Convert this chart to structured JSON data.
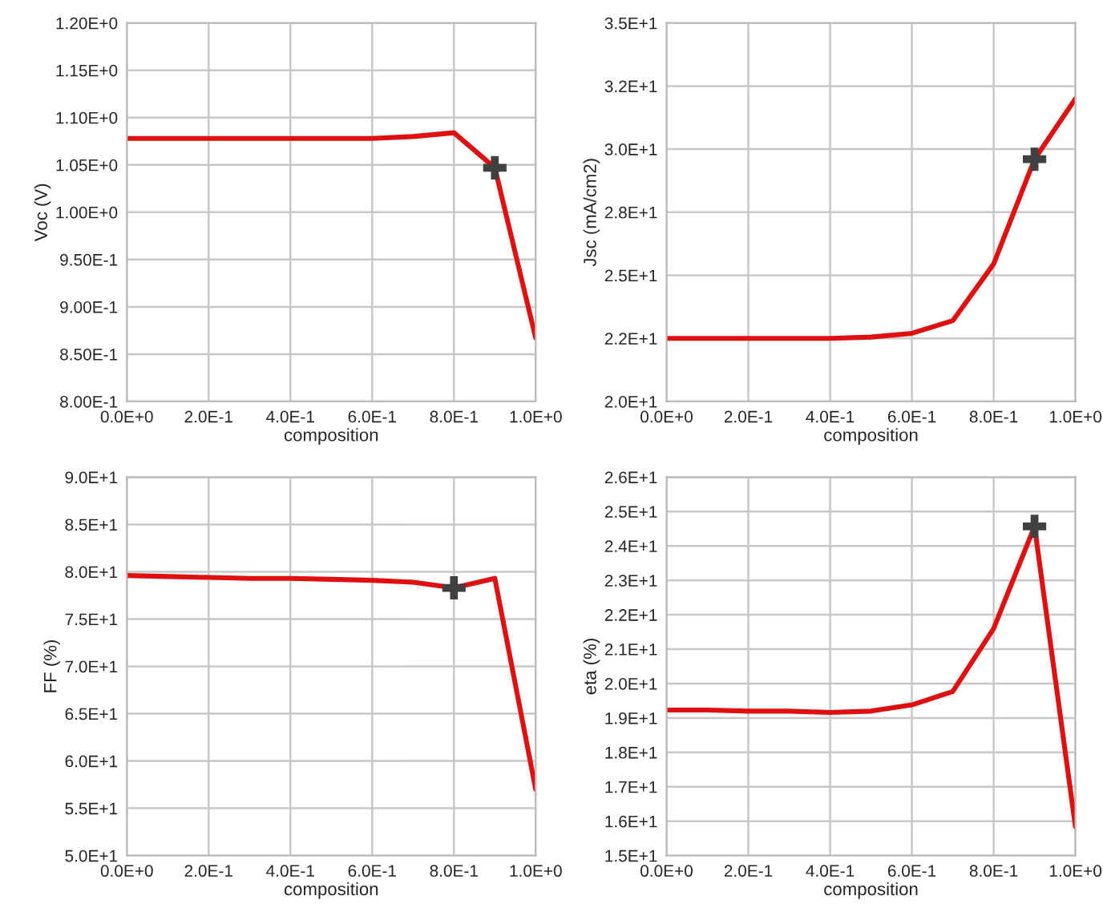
{
  "chart_data": [
    {
      "type": "line",
      "xlabel": "composition",
      "ylabel": "Voc (V)",
      "grid": true,
      "x": [
        0,
        0.1,
        0.2,
        0.3,
        0.4,
        0.5,
        0.6,
        0.7,
        0.8,
        0.9,
        1.0
      ],
      "xlim": [
        0,
        1.0
      ],
      "xticks": [
        {
          "value": 0,
          "label": "0.0E+0"
        },
        {
          "value": 0.2,
          "label": "2.0E-1"
        },
        {
          "value": 0.4,
          "label": "4.0E-1"
        },
        {
          "value": 0.6,
          "label": "6.0E-1"
        },
        {
          "value": 0.8,
          "label": "8.0E-1"
        },
        {
          "value": 1.0,
          "label": "1.0E+0"
        }
      ],
      "ylim": [
        0.8,
        1.2
      ],
      "yticks": [
        {
          "value": 0.8,
          "label": "8.00E-1"
        },
        {
          "value": 0.85,
          "label": "8.50E-1"
        },
        {
          "value": 0.9,
          "label": "9.00E-1"
        },
        {
          "value": 0.95,
          "label": "9.50E-1"
        },
        {
          "value": 1.0,
          "label": "1.00E+0"
        },
        {
          "value": 1.05,
          "label": "1.05E+0"
        },
        {
          "value": 1.1,
          "label": "1.10E+0"
        },
        {
          "value": 1.15,
          "label": "1.15E+0"
        },
        {
          "value": 1.2,
          "label": "1.20E+0"
        }
      ],
      "series": [
        {
          "color": "#e01010",
          "marker": "none",
          "values": [
            1.078,
            1.078,
            1.078,
            1.078,
            1.078,
            1.078,
            1.078,
            1.08,
            1.084,
            1.047,
            0.867
          ]
        },
        {
          "type": "scatter",
          "color": "#404040",
          "marker": "cross",
          "values": [
            null,
            null,
            null,
            null,
            null,
            null,
            null,
            null,
            null,
            1.047,
            null
          ]
        }
      ]
    },
    {
      "type": "line",
      "xlabel": "composition",
      "ylabel": "Jsc (mA/cm2)",
      "grid": true,
      "x": [
        0,
        0.1,
        0.2,
        0.3,
        0.4,
        0.5,
        0.6,
        0.7,
        0.8,
        0.9,
        1.0
      ],
      "xlim": [
        0,
        1.0
      ],
      "xticks": [
        {
          "value": 0,
          "label": "0.0E+0"
        },
        {
          "value": 0.2,
          "label": "2.0E-1"
        },
        {
          "value": 0.4,
          "label": "4.0E-1"
        },
        {
          "value": 0.6,
          "label": "6.0E-1"
        },
        {
          "value": 0.8,
          "label": "8.0E-1"
        },
        {
          "value": 1.0,
          "label": "1.0E+0"
        }
      ],
      "ylim": [
        20,
        35
      ],
      "yticks": [
        {
          "value": 20,
          "label": "2.0E+1"
        },
        {
          "value": 22.5,
          "label": "2.2E+1"
        },
        {
          "value": 25,
          "label": "2.5E+1"
        },
        {
          "value": 27.5,
          "label": "2.8E+1"
        },
        {
          "value": 30,
          "label": "3.0E+1"
        },
        {
          "value": 32.5,
          "label": "3.2E+1"
        },
        {
          "value": 35,
          "label": "3.5E+1"
        }
      ],
      "series": [
        {
          "color": "#e01010",
          "marker": "none",
          "values": [
            22.5,
            22.5,
            22.5,
            22.5,
            22.5,
            22.55,
            22.7,
            23.2,
            25.45,
            29.6,
            32.0
          ]
        },
        {
          "type": "scatter",
          "color": "#404040",
          "marker": "cross",
          "values": [
            null,
            null,
            null,
            null,
            null,
            null,
            null,
            null,
            null,
            29.6,
            null
          ]
        }
      ]
    },
    {
      "type": "line",
      "xlabel": "composition",
      "ylabel": "FF (%)",
      "grid": true,
      "x": [
        0,
        0.1,
        0.2,
        0.3,
        0.4,
        0.5,
        0.6,
        0.7,
        0.8,
        0.9,
        1.0
      ],
      "xlim": [
        0,
        1.0
      ],
      "xticks": [
        {
          "value": 0,
          "label": "0.0E+0"
        },
        {
          "value": 0.2,
          "label": "2.0E-1"
        },
        {
          "value": 0.4,
          "label": "4.0E-1"
        },
        {
          "value": 0.6,
          "label": "6.0E-1"
        },
        {
          "value": 0.8,
          "label": "8.0E-1"
        },
        {
          "value": 1.0,
          "label": "1.0E+0"
        }
      ],
      "ylim": [
        50,
        90
      ],
      "yticks": [
        {
          "value": 50,
          "label": "5.0E+1"
        },
        {
          "value": 55,
          "label": "5.5E+1"
        },
        {
          "value": 60,
          "label": "6.0E+1"
        },
        {
          "value": 65,
          "label": "6.5E+1"
        },
        {
          "value": 70,
          "label": "7.0E+1"
        },
        {
          "value": 75,
          "label": "7.5E+1"
        },
        {
          "value": 80,
          "label": "8.0E+1"
        },
        {
          "value": 85,
          "label": "8.5E+1"
        },
        {
          "value": 90,
          "label": "9.0E+1"
        }
      ],
      "series": [
        {
          "color": "#e01010",
          "marker": "none",
          "values": [
            79.6,
            79.5,
            79.4,
            79.3,
            79.3,
            79.2,
            79.1,
            78.9,
            78.3,
            79.3,
            57.0
          ]
        },
        {
          "type": "scatter",
          "color": "#404040",
          "marker": "cross",
          "values": [
            null,
            null,
            null,
            null,
            null,
            null,
            null,
            null,
            78.3,
            null,
            null
          ]
        }
      ]
    },
    {
      "type": "line",
      "xlabel": "composition",
      "ylabel": "eta (%)",
      "grid": true,
      "x": [
        0,
        0.1,
        0.2,
        0.3,
        0.4,
        0.5,
        0.6,
        0.7,
        0.8,
        0.9,
        1.0
      ],
      "xlim": [
        0,
        1.0
      ],
      "xticks": [
        {
          "value": 0,
          "label": "0.0E+0"
        },
        {
          "value": 0.2,
          "label": "2.0E-1"
        },
        {
          "value": 0.4,
          "label": "4.0E-1"
        },
        {
          "value": 0.6,
          "label": "6.0E-1"
        },
        {
          "value": 0.8,
          "label": "8.0E-1"
        },
        {
          "value": 1.0,
          "label": "1.0E+0"
        }
      ],
      "ylim": [
        15,
        26
      ],
      "yticks": [
        {
          "value": 15,
          "label": "1.5E+1"
        },
        {
          "value": 16,
          "label": "1.6E+1"
        },
        {
          "value": 17,
          "label": "1.7E+1"
        },
        {
          "value": 18,
          "label": "1.8E+1"
        },
        {
          "value": 19,
          "label": "1.9E+1"
        },
        {
          "value": 20,
          "label": "2.0E+1"
        },
        {
          "value": 21,
          "label": "2.1E+1"
        },
        {
          "value": 22,
          "label": "2.2E+1"
        },
        {
          "value": 23,
          "label": "2.3E+1"
        },
        {
          "value": 24,
          "label": "2.4E+1"
        },
        {
          "value": 25,
          "label": "2.5E+1"
        },
        {
          "value": 26,
          "label": "2.6E+1"
        }
      ],
      "series": [
        {
          "color": "#e01010",
          "marker": "none",
          "values": [
            19.23,
            19.23,
            19.2,
            19.2,
            19.16,
            19.2,
            19.38,
            19.77,
            21.6,
            24.57,
            15.84
          ]
        },
        {
          "type": "scatter",
          "color": "#404040",
          "marker": "cross",
          "values": [
            null,
            null,
            null,
            null,
            null,
            null,
            null,
            null,
            null,
            24.57,
            null
          ]
        }
      ]
    }
  ]
}
